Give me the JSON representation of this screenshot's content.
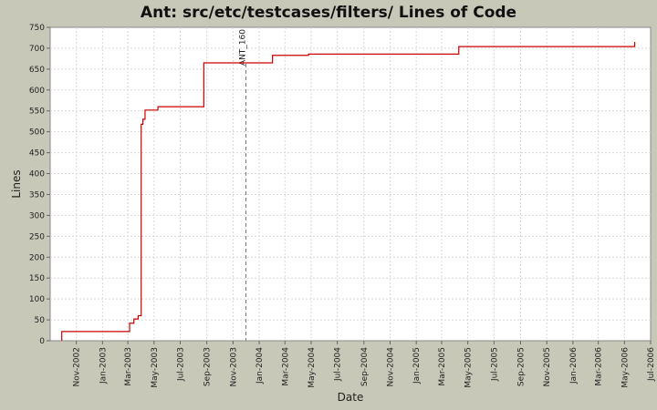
{
  "chart_data": {
    "type": "line",
    "title": "Ant: src/etc/testcases/filters/ Lines of Code",
    "xlabel": "Date",
    "ylabel": "Lines",
    "ylim": [
      0,
      750
    ],
    "yticks": [
      0,
      50,
      100,
      150,
      200,
      250,
      300,
      350,
      400,
      450,
      500,
      550,
      600,
      650,
      700,
      750
    ],
    "xlim": [
      "2002-09-01",
      "2006-07-01"
    ],
    "xticks": [
      {
        "date": "2002-11-01",
        "label": "Nov-2002"
      },
      {
        "date": "2003-01-01",
        "label": "Jan-2003"
      },
      {
        "date": "2003-03-01",
        "label": "Mar-2003"
      },
      {
        "date": "2003-05-01",
        "label": "May-2003"
      },
      {
        "date": "2003-07-01",
        "label": "Jul-2003"
      },
      {
        "date": "2003-09-01",
        "label": "Sep-2003"
      },
      {
        "date": "2003-11-01",
        "label": "Nov-2003"
      },
      {
        "date": "2004-01-01",
        "label": "Jan-2004"
      },
      {
        "date": "2004-03-01",
        "label": "Mar-2004"
      },
      {
        "date": "2004-05-01",
        "label": "May-2004"
      },
      {
        "date": "2004-07-01",
        "label": "Jul-2004"
      },
      {
        "date": "2004-09-01",
        "label": "Sep-2004"
      },
      {
        "date": "2004-11-01",
        "label": "Nov-2004"
      },
      {
        "date": "2005-01-01",
        "label": "Jan-2005"
      },
      {
        "date": "2005-03-01",
        "label": "Mar-2005"
      },
      {
        "date": "2005-05-01",
        "label": "May-2005"
      },
      {
        "date": "2005-07-01",
        "label": "Jul-2005"
      },
      {
        "date": "2005-09-01",
        "label": "Sep-2005"
      },
      {
        "date": "2005-11-01",
        "label": "Nov-2005"
      },
      {
        "date": "2006-01-01",
        "label": "Jan-2006"
      },
      {
        "date": "2006-03-01",
        "label": "Mar-2006"
      },
      {
        "date": "2006-05-01",
        "label": "May-2006"
      },
      {
        "date": "2006-07-01",
        "label": "Jul-2006"
      }
    ],
    "grid": true,
    "step": true,
    "series": [
      {
        "color": "#cc0000",
        "points": [
          {
            "date": "2002-09-28",
            "y": 0
          },
          {
            "date": "2002-09-28",
            "y": 22
          },
          {
            "date": "2003-03-05",
            "y": 22
          },
          {
            "date": "2003-03-05",
            "y": 42
          },
          {
            "date": "2003-03-15",
            "y": 52
          },
          {
            "date": "2003-03-25",
            "y": 60
          },
          {
            "date": "2003-04-01",
            "y": 518
          },
          {
            "date": "2003-04-05",
            "y": 530
          },
          {
            "date": "2003-04-10",
            "y": 552
          },
          {
            "date": "2003-05-10",
            "y": 560
          },
          {
            "date": "2003-08-25",
            "y": 665
          },
          {
            "date": "2004-02-01",
            "y": 683
          },
          {
            "date": "2004-04-25",
            "y": 686
          },
          {
            "date": "2005-04-10",
            "y": 704
          },
          {
            "date": "2006-05-25",
            "y": 715
          }
        ]
      }
    ],
    "markers": [
      {
        "date": "2003-12-01",
        "label": "ANT_160"
      }
    ]
  }
}
